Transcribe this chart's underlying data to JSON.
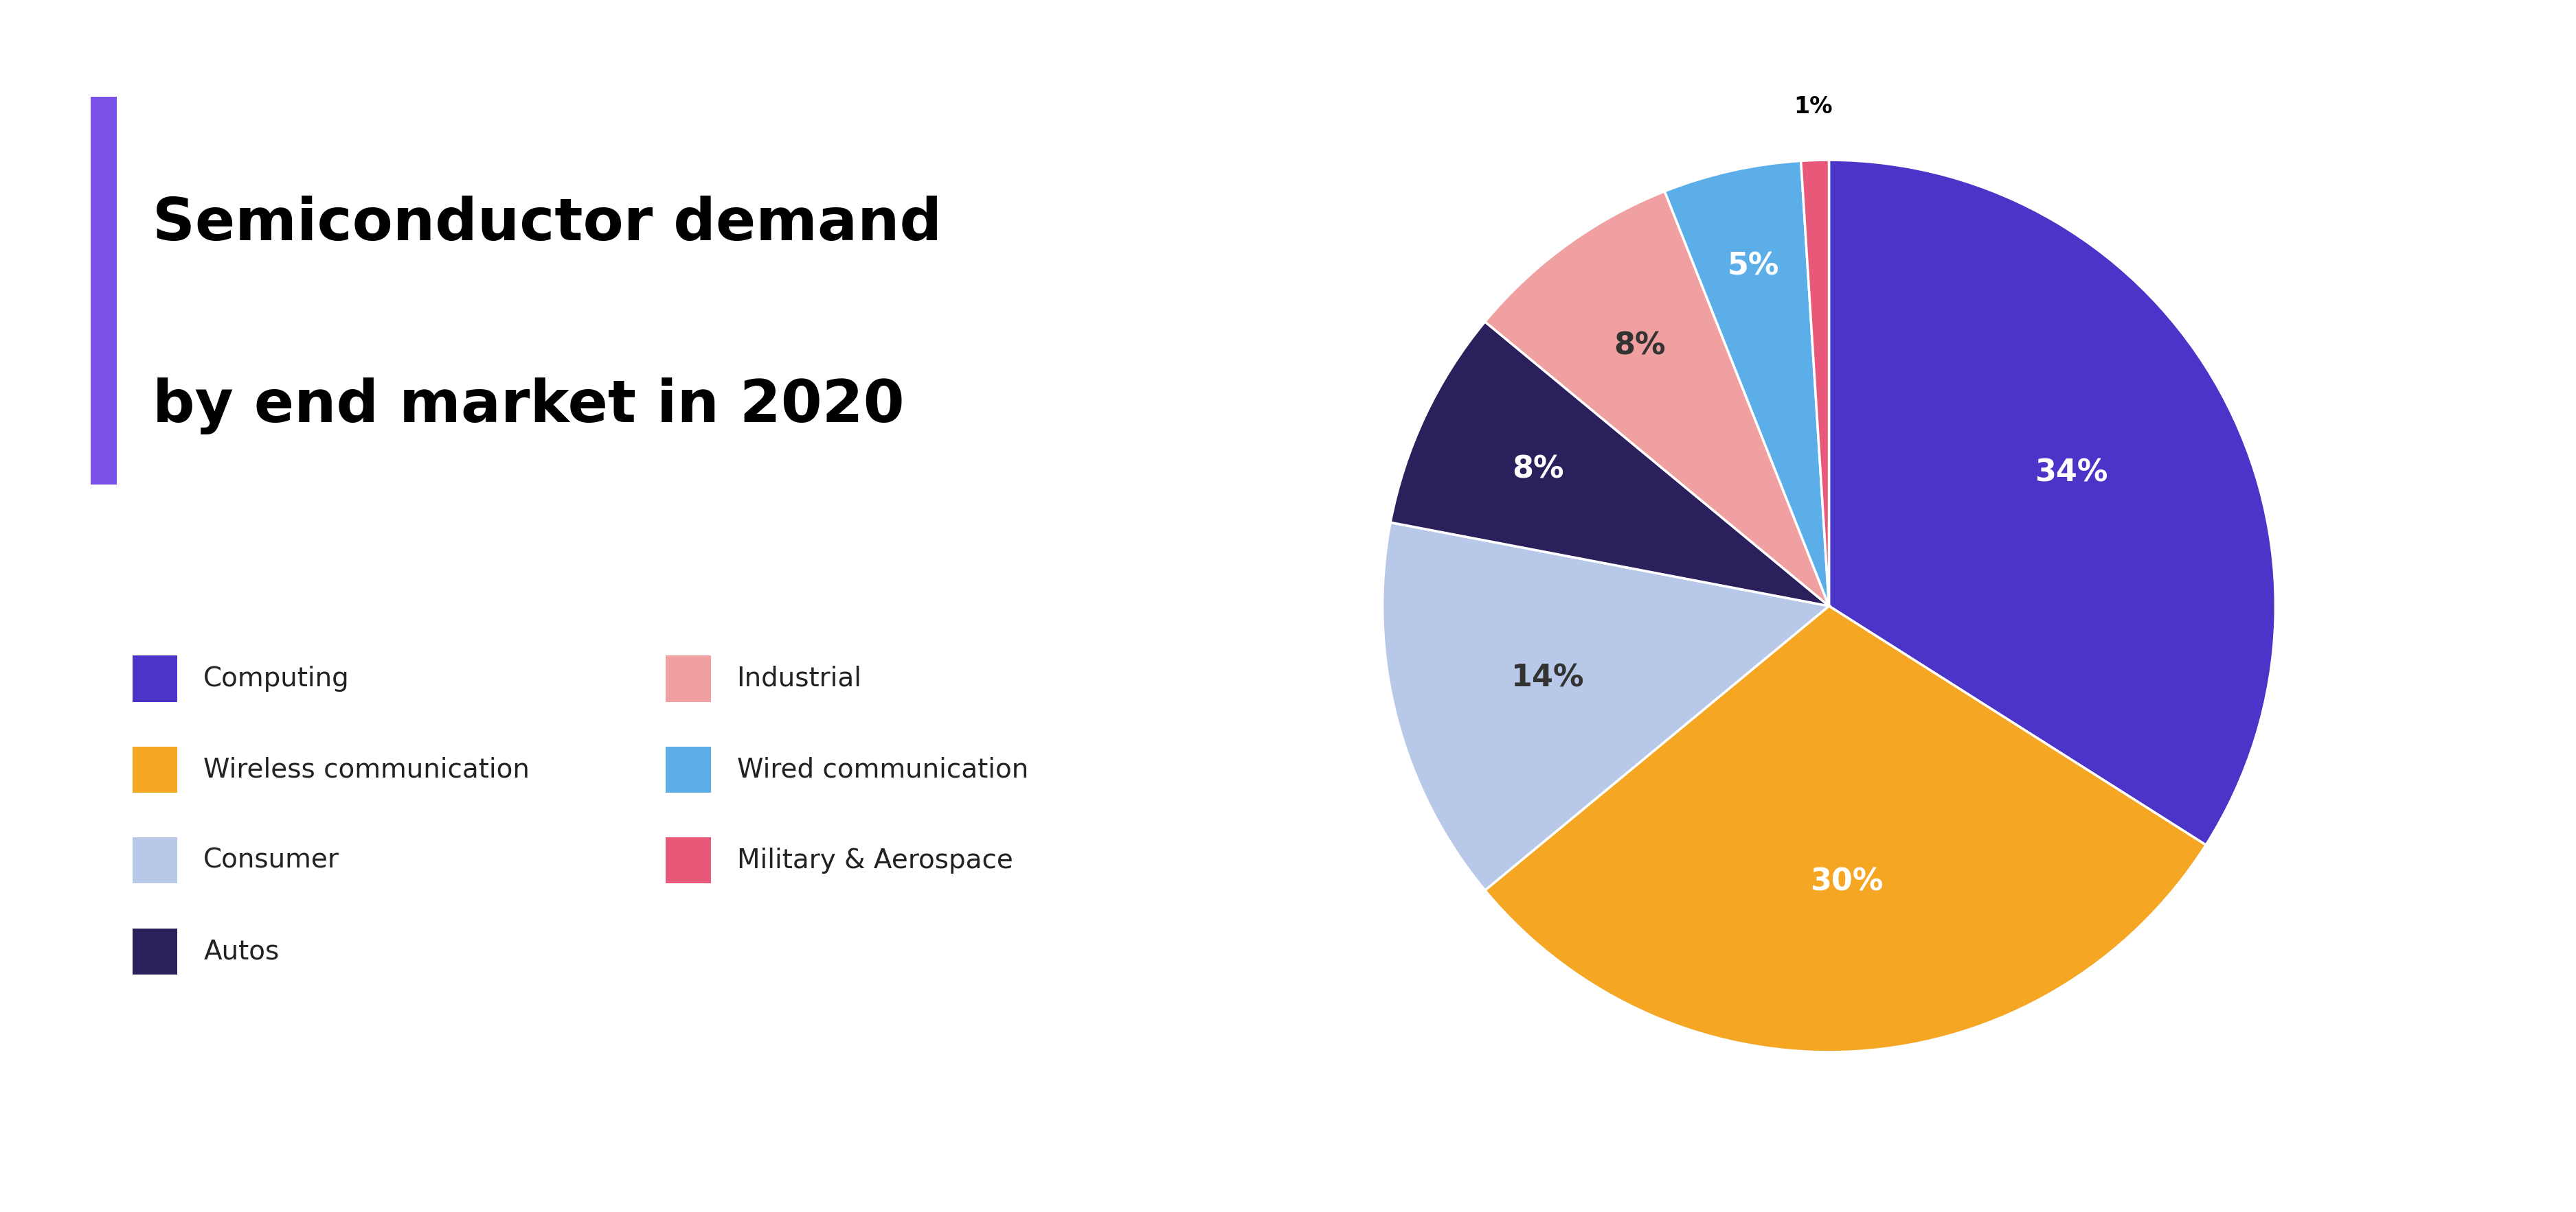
{
  "title_line1": "Semiconductor demand",
  "title_line2": "by end market in 2020",
  "accent_bar_color": "#7B52E8",
  "background_color": "#ffffff",
  "slices": [
    {
      "label": "Computing",
      "value": 34,
      "color": "#4B35C8",
      "text_color": "#ffffff"
    },
    {
      "label": "Wireless communication",
      "value": 30,
      "color": "#F5A623",
      "text_color": "#ffffff"
    },
    {
      "label": "Consumer",
      "value": 14,
      "color": "#B8C8E8",
      "text_color": "#333333"
    },
    {
      "label": "Autos",
      "value": 8,
      "color": "#2B1F5C",
      "text_color": "#ffffff"
    },
    {
      "label": "Industrial",
      "value": 8,
      "color": "#F0A0A0",
      "text_color": "#333333"
    },
    {
      "label": "Wired communication",
      "value": 5,
      "color": "#5BAEE8",
      "text_color": "#ffffff"
    },
    {
      "label": "Military & Aerospace",
      "value": 1,
      "color": "#E85878",
      "text_color": "#ffffff"
    }
  ],
  "legend_col1": [
    "Computing",
    "Wireless communication",
    "Consumer",
    "Autos"
  ],
  "legend_col2": [
    "Industrial",
    "Wired communication",
    "Military & Aerospace"
  ],
  "title_fontsize": 62,
  "label_fontsize": 32,
  "legend_fontsize": 28
}
